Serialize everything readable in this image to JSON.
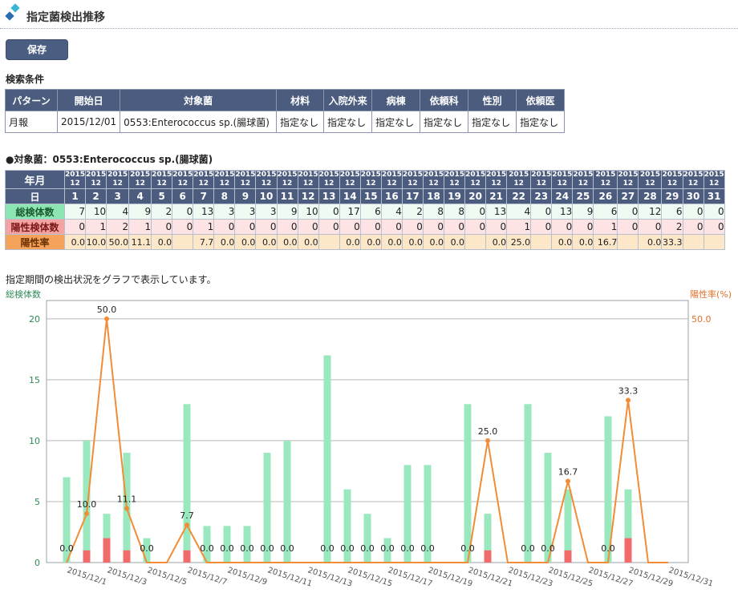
{
  "page": {
    "title": "指定菌検出推移"
  },
  "toolbar": {
    "save_label": "保存"
  },
  "search": {
    "section_label": "検索条件",
    "headers": [
      "パターン",
      "開始日",
      "対象菌",
      "材料",
      "入院外来",
      "病棟",
      "依頼科",
      "性別",
      "依頼医"
    ],
    "values": [
      "月報",
      "2015/12/01",
      "0553:Enterococcus sp.(腸球菌)",
      "指定なし",
      "指定なし",
      "指定なし",
      "指定なし",
      "指定なし",
      "指定なし"
    ]
  },
  "target": {
    "label": "●対象菌：0553:Enterococcus sp.(腸球菌)"
  },
  "daily_table": {
    "ym_header": "年月",
    "day_header": "日",
    "year": "2015",
    "month": "12",
    "total_label": "総検体数",
    "positive_label": "陽性検体数",
    "rate_label": "陽性率",
    "days": [
      "1",
      "2",
      "3",
      "4",
      "5",
      "6",
      "7",
      "8",
      "9",
      "10",
      "11",
      "12",
      "13",
      "14",
      "15",
      "16",
      "17",
      "18",
      "19",
      "20",
      "21",
      "22",
      "23",
      "24",
      "25",
      "26",
      "27",
      "28",
      "29",
      "30",
      "31"
    ],
    "totals": [
      "7",
      "10",
      "4",
      "9",
      "2",
      "0",
      "13",
      "3",
      "3",
      "3",
      "9",
      "10",
      "0",
      "17",
      "6",
      "4",
      "2",
      "8",
      "8",
      "0",
      "13",
      "4",
      "0",
      "13",
      "9",
      "6",
      "0",
      "12",
      "6",
      "0",
      "0"
    ],
    "positives": [
      "0",
      "1",
      "2",
      "1",
      "0",
      "0",
      "1",
      "0",
      "0",
      "0",
      "0",
      "0",
      "0",
      "0",
      "0",
      "0",
      "0",
      "0",
      "0",
      "0",
      "0",
      "1",
      "0",
      "0",
      "0",
      "1",
      "0",
      "0",
      "2",
      "0",
      "0"
    ],
    "rates": [
      "0.0",
      "10.0",
      "50.0",
      "11.1",
      "0.0",
      "",
      "7.7",
      "0.0",
      "0.0",
      "0.0",
      "0.0",
      "0.0",
      "",
      "0.0",
      "0.0",
      "0.0",
      "0.0",
      "0.0",
      "0.0",
      "",
      "0.0",
      "25.0",
      "",
      "0.0",
      "0.0",
      "16.7",
      "",
      "0.0",
      "33.3",
      "",
      ""
    ]
  },
  "chart_caption": "指定期間の検出状況をグラフで表示しています。",
  "chart_data": {
    "type": "bar",
    "y_left_label": "総検体数",
    "y_right_label": "陽性率(%)",
    "y_left_ticks": [
      "0",
      "5",
      "10",
      "15",
      "20"
    ],
    "y_right_tick": "50.0",
    "ylim": [
      0,
      21.5
    ],
    "y2lim": [
      0,
      53.75
    ],
    "grid": true,
    "x_tick_labels": [
      "2015/12/1",
      "2015/12/3",
      "2015/12/5",
      "2015/12/7",
      "2015/12/9",
      "2015/12/11",
      "2015/12/13",
      "2015/12/15",
      "2015/12/17",
      "2015/12/19",
      "2015/12/21",
      "2015/12/23",
      "2015/12/25",
      "2015/12/27",
      "2015/12/29",
      "2015/12/31"
    ],
    "categories": [
      "2015/12/1",
      "2015/12/2",
      "2015/12/3",
      "2015/12/4",
      "2015/12/5",
      "2015/12/6",
      "2015/12/7",
      "2015/12/8",
      "2015/12/9",
      "2015/12/10",
      "2015/12/11",
      "2015/12/12",
      "2015/12/13",
      "2015/12/14",
      "2015/12/15",
      "2015/12/16",
      "2015/12/17",
      "2015/12/18",
      "2015/12/19",
      "2015/12/20",
      "2015/12/21",
      "2015/12/22",
      "2015/12/23",
      "2015/12/24",
      "2015/12/25",
      "2015/12/26",
      "2015/12/27",
      "2015/12/28",
      "2015/12/29",
      "2015/12/30",
      "2015/12/31"
    ],
    "series": [
      {
        "name": "総検体数",
        "type": "bar",
        "color": "#99e8be",
        "values": [
          7,
          10,
          4,
          9,
          2,
          0,
          13,
          3,
          3,
          3,
          9,
          10,
          0,
          17,
          6,
          4,
          2,
          8,
          8,
          0,
          13,
          4,
          0,
          13,
          9,
          6,
          0,
          12,
          6,
          0,
          0
        ]
      },
      {
        "name": "陽性検体数",
        "type": "bar",
        "color": "#f26b6b",
        "values": [
          0,
          1,
          2,
          1,
          0,
          0,
          1,
          0,
          0,
          0,
          0,
          0,
          0,
          0,
          0,
          0,
          0,
          0,
          0,
          0,
          0,
          1,
          0,
          0,
          0,
          1,
          0,
          0,
          2,
          0,
          0
        ]
      },
      {
        "name": "陽性率",
        "type": "line",
        "color": "#f28c36",
        "axis": "right",
        "values": [
          0.0,
          10.0,
          50.0,
          11.1,
          0.0,
          null,
          7.7,
          0.0,
          0.0,
          0.0,
          0.0,
          0.0,
          null,
          0.0,
          0.0,
          0.0,
          0.0,
          0.0,
          0.0,
          null,
          0.0,
          25.0,
          null,
          0.0,
          0.0,
          16.7,
          null,
          0.0,
          33.3,
          null,
          null
        ],
        "labels": [
          "0.0",
          "10.0",
          "50.0",
          "11.1",
          "0.0",
          "",
          "7.7",
          "0.0",
          "0.0",
          "0.0",
          "0.0",
          "0.0",
          "",
          "0.0",
          "0.0",
          "0.0",
          "0.0",
          "0.0",
          "0.0",
          "",
          "0.0",
          "25.0",
          "",
          "0.0",
          "0.0",
          "16.7",
          "",
          "0.0",
          "33.3",
          "",
          ""
        ]
      }
    ]
  }
}
